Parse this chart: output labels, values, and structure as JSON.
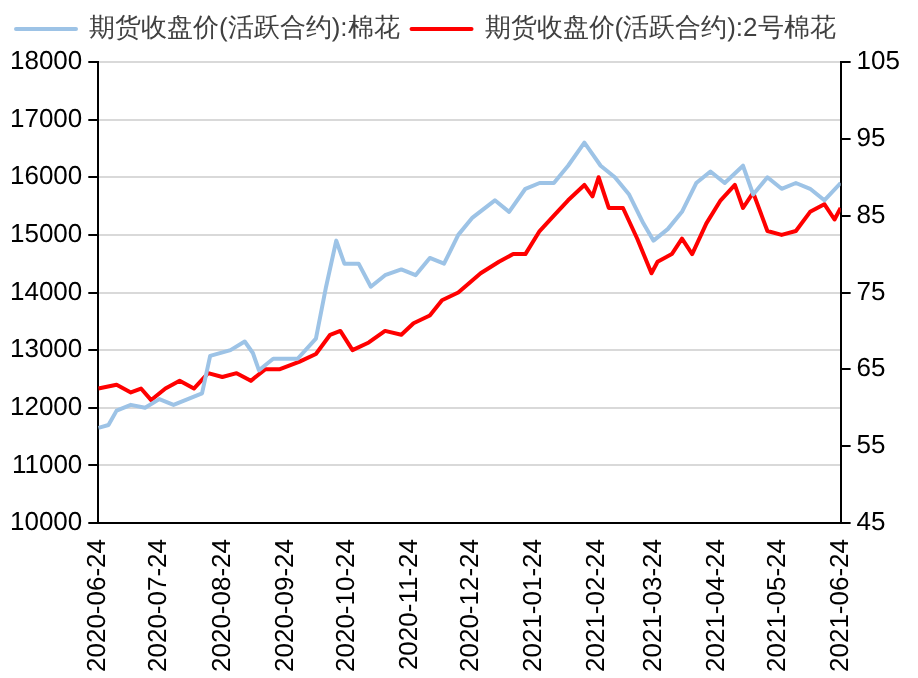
{
  "chart_data": {
    "type": "line",
    "x": [
      "2020-06-24",
      "2020-06-29",
      "2020-07-03",
      "2020-07-10",
      "2020-07-17",
      "2020-07-24",
      "2020-07-31",
      "2020-08-07",
      "2020-08-14",
      "2020-08-18",
      "2020-08-28",
      "2020-09-04",
      "2020-09-08",
      "2020-09-11",
      "2020-09-18",
      "2020-09-25",
      "2020-09-30",
      "2020-10-09",
      "2020-10-14",
      "2020-10-19",
      "2020-10-23",
      "2020-10-30",
      "2020-11-05",
      "2020-11-12",
      "2020-11-20",
      "2020-11-27",
      "2020-12-04",
      "2020-12-11",
      "2020-12-18",
      "2020-12-25",
      "2021-01-05",
      "2021-01-12",
      "2021-01-20",
      "2021-01-27",
      "2021-02-03",
      "2021-02-10",
      "2021-02-18",
      "2021-02-22",
      "2021-02-26",
      "2021-03-05",
      "2021-03-12",
      "2021-03-19",
      "2021-03-24",
      "2021-03-31",
      "2021-04-07",
      "2021-04-14",
      "2021-04-21",
      "2021-04-28",
      "2021-05-07",
      "2021-05-12",
      "2021-05-19",
      "2021-05-26",
      "2021-06-02",
      "2021-06-09",
      "2021-06-16",
      "2021-06-24"
    ],
    "series": [
      {
        "name": "期货收盘价(活跃合约):棉花",
        "color": "#9dc3e6",
        "values": [
          11650,
          11700,
          11950,
          12050,
          12000,
          12150,
          12050,
          12150,
          12250,
          12900,
          13000,
          13150,
          12950,
          12650,
          12850,
          12850,
          12850,
          13200,
          14100,
          14900,
          14500,
          14500,
          14100,
          14300,
          14400,
          14300,
          14600,
          14500,
          15000,
          15300,
          15600,
          15400,
          15800,
          15900,
          15900,
          16200,
          16600,
          16400,
          16200,
          16000,
          15700,
          15200,
          14900,
          15100,
          15400,
          15900,
          16100,
          15900,
          16200,
          15700,
          16000,
          15800,
          15900,
          15800,
          15600,
          15900
        ]
      },
      {
        "name": "期货收盘价(活跃合约):2号棉花",
        "color": "#ff0000",
        "axis": "y2",
        "x": [
          "2020-06-24",
          "2020-07-03",
          "2020-07-10",
          "2020-07-15",
          "2020-07-20",
          "2020-07-27",
          "2020-08-03",
          "2020-08-10",
          "2020-08-17",
          "2020-08-24",
          "2020-08-31",
          "2020-09-07",
          "2020-09-14",
          "2020-09-21",
          "2020-10-01",
          "2020-10-09",
          "2020-10-16",
          "2020-10-21",
          "2020-10-27",
          "2020-11-04",
          "2020-11-12",
          "2020-11-20",
          "2020-11-26",
          "2020-12-04",
          "2020-12-10",
          "2020-12-18",
          "2020-12-29",
          "2021-01-07",
          "2021-01-14",
          "2021-01-20",
          "2021-01-27",
          "2021-02-03",
          "2021-02-10",
          "2021-02-18",
          "2021-02-22",
          "2021-02-25",
          "2021-03-02",
          "2021-03-09",
          "2021-03-16",
          "2021-03-23",
          "2021-03-26",
          "2021-04-02",
          "2021-04-07",
          "2021-04-12",
          "2021-04-19",
          "2021-04-26",
          "2021-05-03",
          "2021-05-07",
          "2021-05-12",
          "2021-05-19",
          "2021-05-26",
          "2021-06-02",
          "2021-06-09",
          "2021-06-16",
          "2021-06-21",
          "2021-06-24"
        ],
        "values": [
          62.5,
          63,
          62,
          62.5,
          61,
          62.5,
          63.5,
          62.5,
          64.5,
          64,
          64.5,
          63.5,
          65,
          65,
          66,
          67,
          69.5,
          70,
          67.5,
          68.5,
          70,
          69.5,
          71,
          72,
          74,
          75,
          77.5,
          79,
          80,
          80,
          83,
          85,
          87,
          89,
          87.5,
          90,
          86,
          86,
          82,
          77.5,
          79,
          80,
          82,
          80,
          84,
          87,
          89,
          86,
          88,
          83,
          82.5,
          83,
          85.5,
          86.5,
          84.5,
          86
        ]
      }
    ],
    "xlim": [
      "2020-06-24",
      "2021-06-24"
    ],
    "xticks": [
      "2020-06-24",
      "2020-07-24",
      "2020-08-24",
      "2020-09-24",
      "2020-10-24",
      "2020-11-24",
      "2020-12-24",
      "2021-01-24",
      "2021-02-24",
      "2021-03-24",
      "2021-04-24",
      "2021-05-24",
      "2021-06-24"
    ],
    "ylim": [
      10000,
      18000
    ],
    "yticks": [
      10000,
      11000,
      12000,
      13000,
      14000,
      15000,
      16000,
      17000,
      18000
    ],
    "y2lim": [
      45,
      105
    ],
    "y2ticks": [
      45,
      55,
      65,
      75,
      85,
      95,
      105
    ],
    "grid": "y",
    "legend": "top left",
    "marker": "none",
    "line_style": "solid"
  }
}
